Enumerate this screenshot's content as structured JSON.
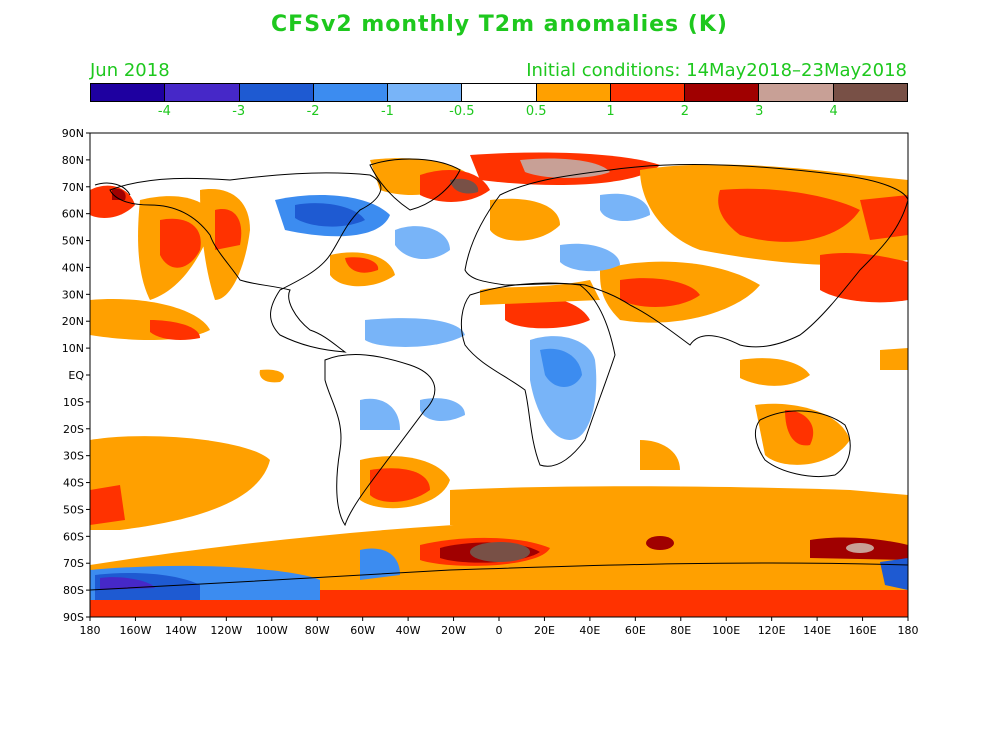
{
  "title": "CFSv2 monthly T2m anomalies (K)",
  "valid_month": "Jun 2018",
  "initial_conditions": "Initial conditions: 14May2018–23May2018",
  "colorbar": {
    "colors": [
      "#1e00a0",
      "#4628c8",
      "#1e5ad2",
      "#3c8cf0",
      "#78b4f8",
      "#ffffff",
      "#ffa000",
      "#ff3200",
      "#a00000",
      "#c8a096",
      "#785046"
    ],
    "labels": [
      "-4",
      "-3",
      "-2",
      "-1",
      "-0.5",
      "0.5",
      "1",
      "2",
      "3",
      "4"
    ]
  },
  "map": {
    "lat_labels": [
      "90N",
      "80N",
      "70N",
      "60N",
      "50N",
      "40N",
      "30N",
      "20N",
      "10N",
      "EQ",
      "10S",
      "20S",
      "30S",
      "40S",
      "50S",
      "60S",
      "70S",
      "80S",
      "90S"
    ],
    "lon_labels": [
      "180",
      "160W",
      "140W",
      "120W",
      "100W",
      "80W",
      "60W",
      "40W",
      "20W",
      "0",
      "20E",
      "40E",
      "60E",
      "80E",
      "100E",
      "120E",
      "140E",
      "160E",
      "180"
    ]
  }
}
